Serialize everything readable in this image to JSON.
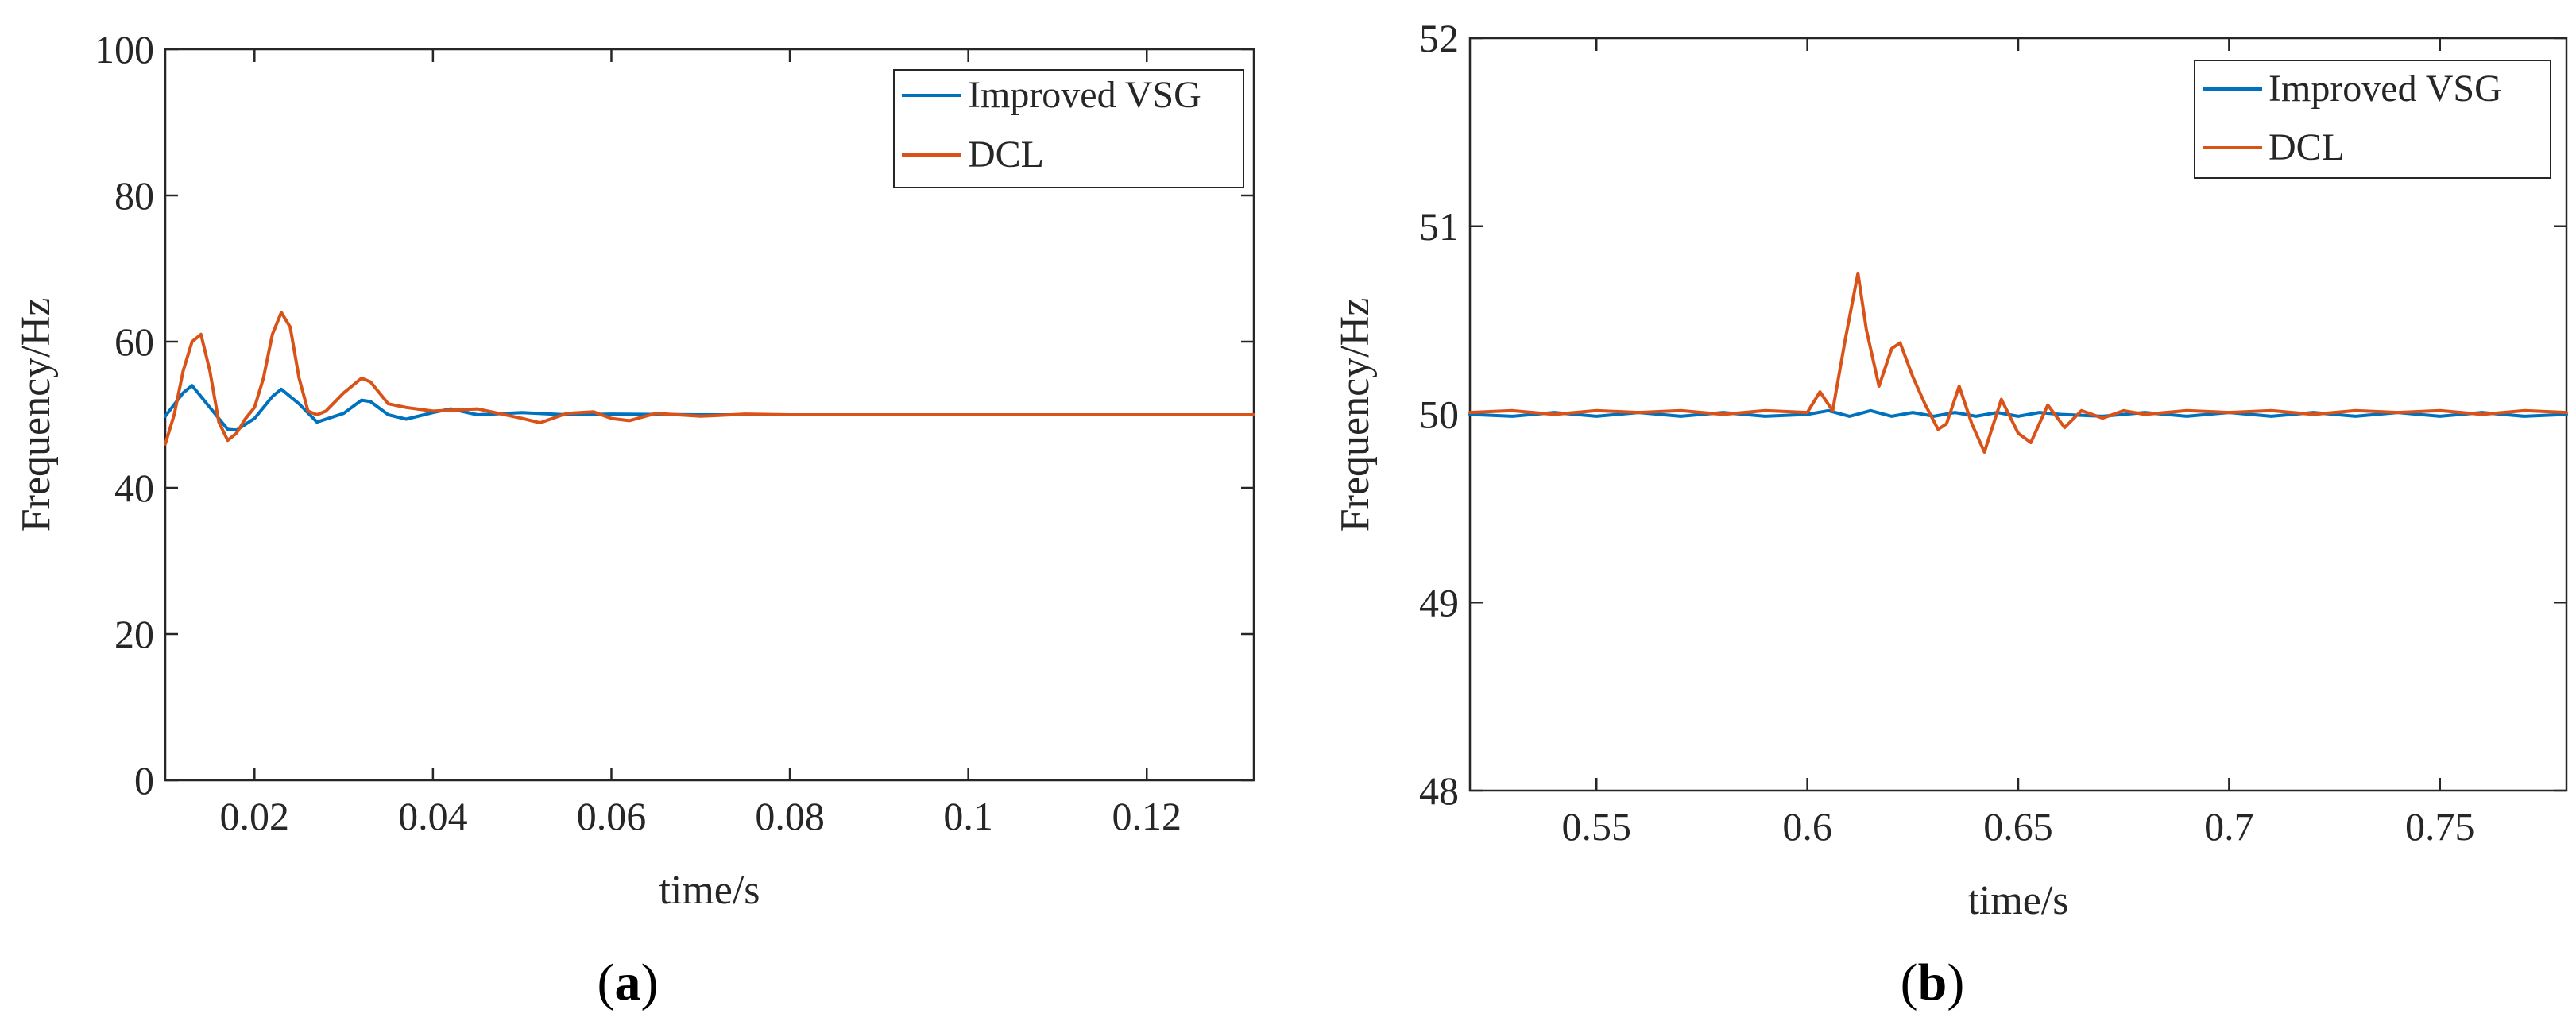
{
  "chart_data": [
    {
      "type": "line",
      "panel_label": "a",
      "xlabel": "time/s",
      "ylabel": "Frequency/Hz",
      "xlim": [
        0.01,
        0.132
      ],
      "ylim": [
        0,
        100
      ],
      "xticks": [
        0.02,
        0.04,
        0.06,
        0.08,
        0.1,
        0.12
      ],
      "xtick_labels": [
        "0.02",
        "0.04",
        "0.06",
        "0.08",
        "0.1",
        "0.12"
      ],
      "yticks": [
        0,
        20,
        40,
        60,
        80,
        100
      ],
      "ytick_labels": [
        "0",
        "20",
        "40",
        "60",
        "80",
        "100"
      ],
      "legend_position": "top-right",
      "series": [
        {
          "name": "Improved VSG",
          "color": "#0072BD",
          "x": [
            0.01,
            0.012,
            0.013,
            0.015,
            0.017,
            0.018,
            0.02,
            0.022,
            0.023,
            0.025,
            0.027,
            0.03,
            0.032,
            0.033,
            0.035,
            0.037,
            0.04,
            0.042,
            0.045,
            0.05,
            0.055,
            0.06,
            0.07,
            0.08,
            0.132
          ],
          "y": [
            49.8,
            53.0,
            54.0,
            51.0,
            48.0,
            47.9,
            49.5,
            52.5,
            53.5,
            51.5,
            49.0,
            50.2,
            52.0,
            51.8,
            50.0,
            49.4,
            50.3,
            50.8,
            50.0,
            50.3,
            50.0,
            50.1,
            50.0,
            50.0,
            50.0
          ]
        },
        {
          "name": "DCL",
          "color": "#D95319",
          "x": [
            0.01,
            0.011,
            0.012,
            0.013,
            0.014,
            0.015,
            0.016,
            0.017,
            0.018,
            0.019,
            0.02,
            0.021,
            0.022,
            0.023,
            0.024,
            0.025,
            0.026,
            0.027,
            0.028,
            0.03,
            0.032,
            0.033,
            0.035,
            0.037,
            0.04,
            0.045,
            0.05,
            0.052,
            0.055,
            0.058,
            0.06,
            0.062,
            0.065,
            0.07,
            0.075,
            0.08,
            0.132
          ],
          "y": [
            46.0,
            50.0,
            56.0,
            60.0,
            61.0,
            56.0,
            49.0,
            46.5,
            47.5,
            49.5,
            51.0,
            55.0,
            61.0,
            64.0,
            62.0,
            55.0,
            50.5,
            50.0,
            50.5,
            53.0,
            55.0,
            54.5,
            51.5,
            51.0,
            50.5,
            50.8,
            49.5,
            48.9,
            50.2,
            50.4,
            49.5,
            49.2,
            50.2,
            49.8,
            50.1,
            50.0,
            50.0
          ]
        }
      ]
    },
    {
      "type": "line",
      "panel_label": "b",
      "xlabel": "time/s",
      "ylabel": "Frequency/Hz",
      "xlim": [
        0.52,
        0.78
      ],
      "ylim": [
        48,
        52
      ],
      "xticks": [
        0.55,
        0.6,
        0.65,
        0.7,
        0.75
      ],
      "xtick_labels": [
        "0.55",
        "0.6",
        "0.65",
        "0.7",
        "0.75"
      ],
      "yticks": [
        48,
        49,
        50,
        51,
        52
      ],
      "ytick_labels": [
        "48",
        "49",
        "50",
        "51",
        "52"
      ],
      "legend_position": "top-right",
      "series": [
        {
          "name": "Improved VSG",
          "color": "#0072BD",
          "x": [
            0.52,
            0.53,
            0.54,
            0.55,
            0.56,
            0.57,
            0.58,
            0.59,
            0.6,
            0.605,
            0.61,
            0.615,
            0.62,
            0.625,
            0.63,
            0.635,
            0.64,
            0.645,
            0.65,
            0.655,
            0.66,
            0.67,
            0.68,
            0.69,
            0.7,
            0.71,
            0.72,
            0.73,
            0.74,
            0.75,
            0.76,
            0.77,
            0.78
          ],
          "y": [
            50.0,
            49.99,
            50.01,
            49.99,
            50.01,
            49.99,
            50.01,
            49.99,
            50.0,
            50.02,
            49.99,
            50.02,
            49.99,
            50.01,
            49.99,
            50.01,
            49.99,
            50.01,
            49.99,
            50.01,
            50.0,
            49.99,
            50.01,
            49.99,
            50.01,
            49.99,
            50.01,
            49.99,
            50.01,
            49.99,
            50.01,
            49.99,
            50.0
          ]
        },
        {
          "name": "DCL",
          "color": "#D95319",
          "x": [
            0.52,
            0.53,
            0.54,
            0.55,
            0.56,
            0.57,
            0.58,
            0.59,
            0.6,
            0.603,
            0.606,
            0.609,
            0.612,
            0.614,
            0.617,
            0.62,
            0.622,
            0.625,
            0.628,
            0.631,
            0.633,
            0.636,
            0.639,
            0.642,
            0.646,
            0.65,
            0.653,
            0.657,
            0.661,
            0.665,
            0.67,
            0.675,
            0.68,
            0.69,
            0.7,
            0.71,
            0.72,
            0.73,
            0.74,
            0.75,
            0.76,
            0.77,
            0.78
          ],
          "y": [
            50.01,
            50.02,
            50.0,
            50.02,
            50.01,
            50.02,
            50.0,
            50.02,
            50.01,
            50.12,
            50.02,
            50.4,
            50.75,
            50.45,
            50.15,
            50.35,
            50.38,
            50.2,
            50.05,
            49.92,
            49.95,
            50.15,
            49.95,
            49.8,
            50.08,
            49.9,
            49.85,
            50.05,
            49.93,
            50.02,
            49.98,
            50.02,
            50.0,
            50.02,
            50.01,
            50.02,
            50.0,
            50.02,
            50.01,
            50.02,
            50.0,
            50.02,
            50.01
          ]
        }
      ]
    }
  ]
}
